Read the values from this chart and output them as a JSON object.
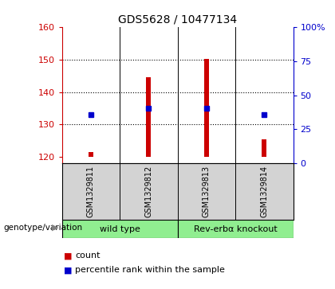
{
  "title": "GDS5628 / 10477134",
  "samples": [
    "GSM1329811",
    "GSM1329812",
    "GSM1329813",
    "GSM1329814"
  ],
  "bar_bottoms": [
    120,
    120,
    120,
    120
  ],
  "bar_tops": [
    121.5,
    144.5,
    150.2,
    125.5
  ],
  "bar_color": "#cc0000",
  "percentile_values": [
    133.0,
    135.0,
    135.0,
    133.0
  ],
  "percentile_color": "#0000cc",
  "ylim_left": [
    118,
    160
  ],
  "ylim_right": [
    0,
    100
  ],
  "yticks_left": [
    120,
    130,
    140,
    150,
    160
  ],
  "yticks_right": [
    0,
    25,
    50,
    75,
    100
  ],
  "ytick_labels_right": [
    "0",
    "25",
    "50",
    "75",
    "100%"
  ],
  "bar_width": 0.08,
  "background_color": "#ffffff",
  "plot_bg_color": "#ffffff",
  "left_tick_color": "#cc0000",
  "right_tick_color": "#0000cc",
  "legend_count_color": "#cc0000",
  "legend_pct_color": "#0000cc",
  "genotype_label": "genotype/variation",
  "group1_label": "wild type",
  "group2_label": "Rev-erbα knockout",
  "legend_count_text": "count",
  "legend_pct_text": "percentile rank within the sample",
  "sample_bg_color": "#d3d3d3",
  "group_bg_color": "#90ee90"
}
